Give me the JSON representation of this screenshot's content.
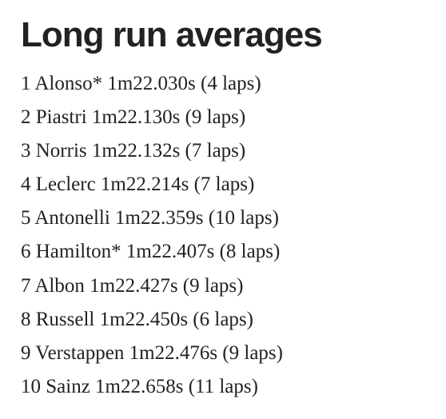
{
  "title": "Long run averages",
  "items": [
    "1 Alonso* 1m22.030s (4 laps)",
    "2 Piastri 1m22.130s (9 laps)",
    "3 Norris 1m22.132s (7 laps)",
    "4 Leclerc 1m22.214s (7 laps)",
    "5 Antonelli 1m22.359s (10 laps)",
    "6 Hamilton* 1m22.407s (8 laps)",
    "7 Albon 1m22.427s (9 laps)",
    "8 Russell 1m22.450s (6 laps)",
    "9 Verstappen 1m22.476s (9 laps)",
    "10 Sainz 1m22.658s (11 laps)"
  ]
}
